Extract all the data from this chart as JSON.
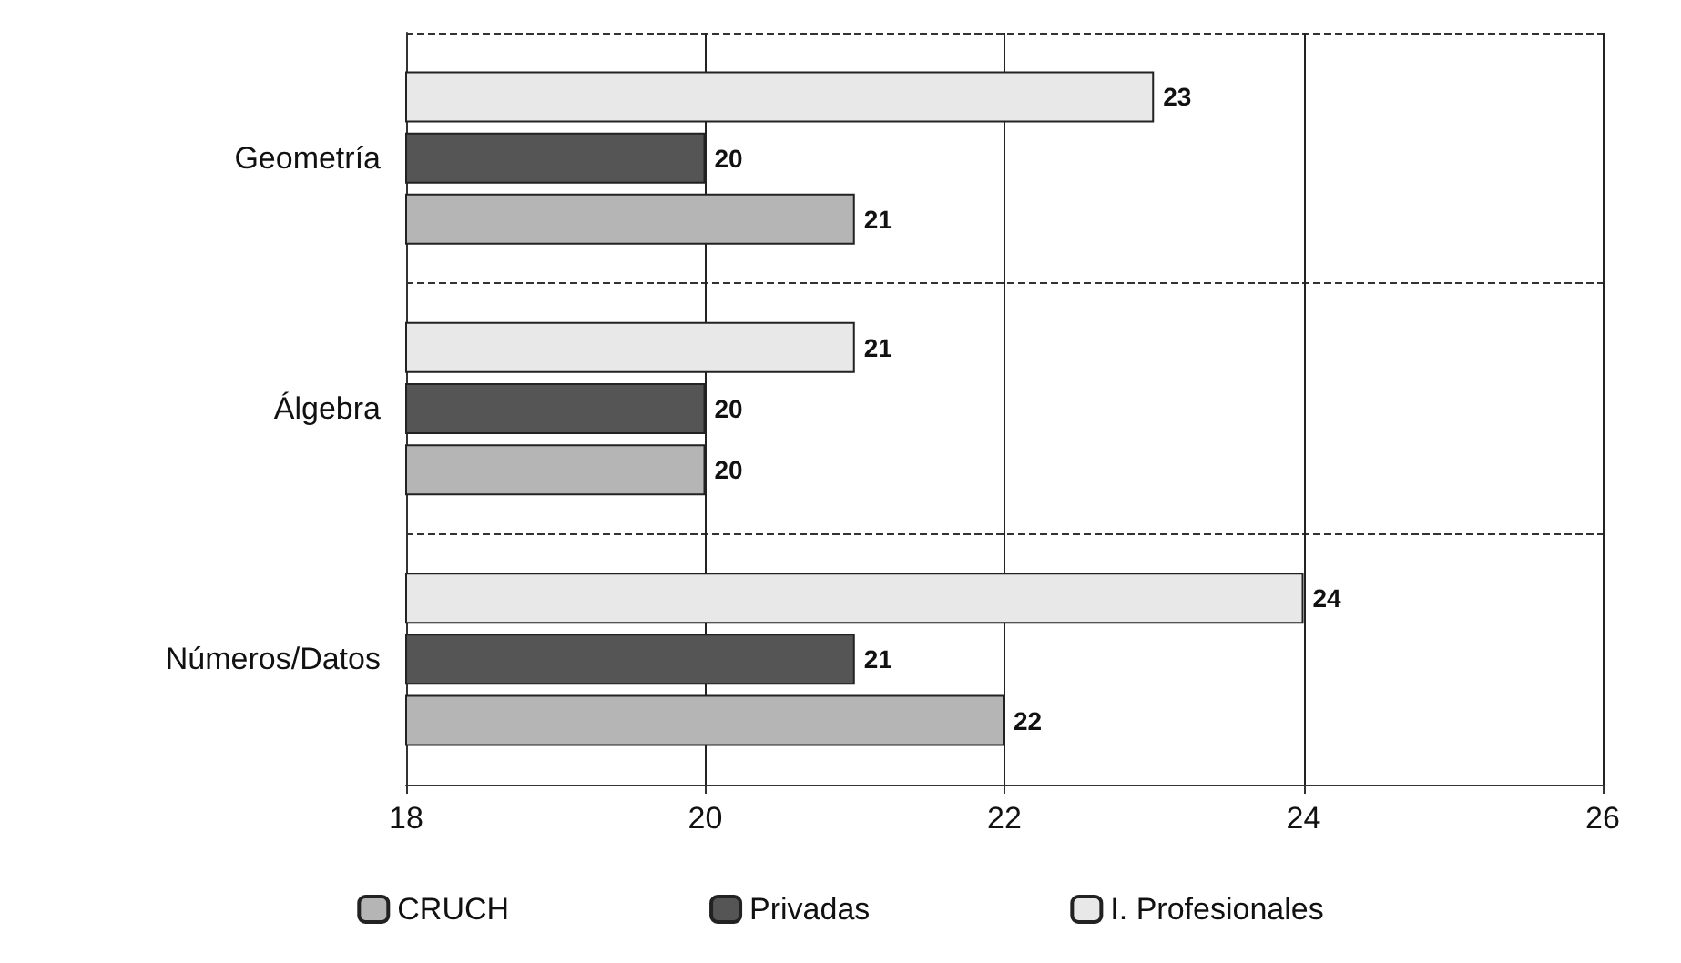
{
  "chart_data": {
    "type": "bar",
    "orientation": "horizontal",
    "categories": [
      "Geometría",
      "Álgebra",
      "Números/Datos"
    ],
    "series": [
      {
        "name": "I. Profesionales",
        "color": "#e8e8e8",
        "values": [
          23,
          21,
          24
        ]
      },
      {
        "name": "Privadas",
        "color": "#555555",
        "values": [
          20,
          20,
          21
        ]
      },
      {
        "name": "CRUCH",
        "color": "#b5b5b5",
        "values": [
          21,
          20,
          22
        ]
      }
    ],
    "xlim": [
      18,
      26
    ],
    "xticks": [
      18,
      20,
      22,
      24,
      26
    ],
    "grid": true,
    "legend": "bottom",
    "data_labels": true
  }
}
